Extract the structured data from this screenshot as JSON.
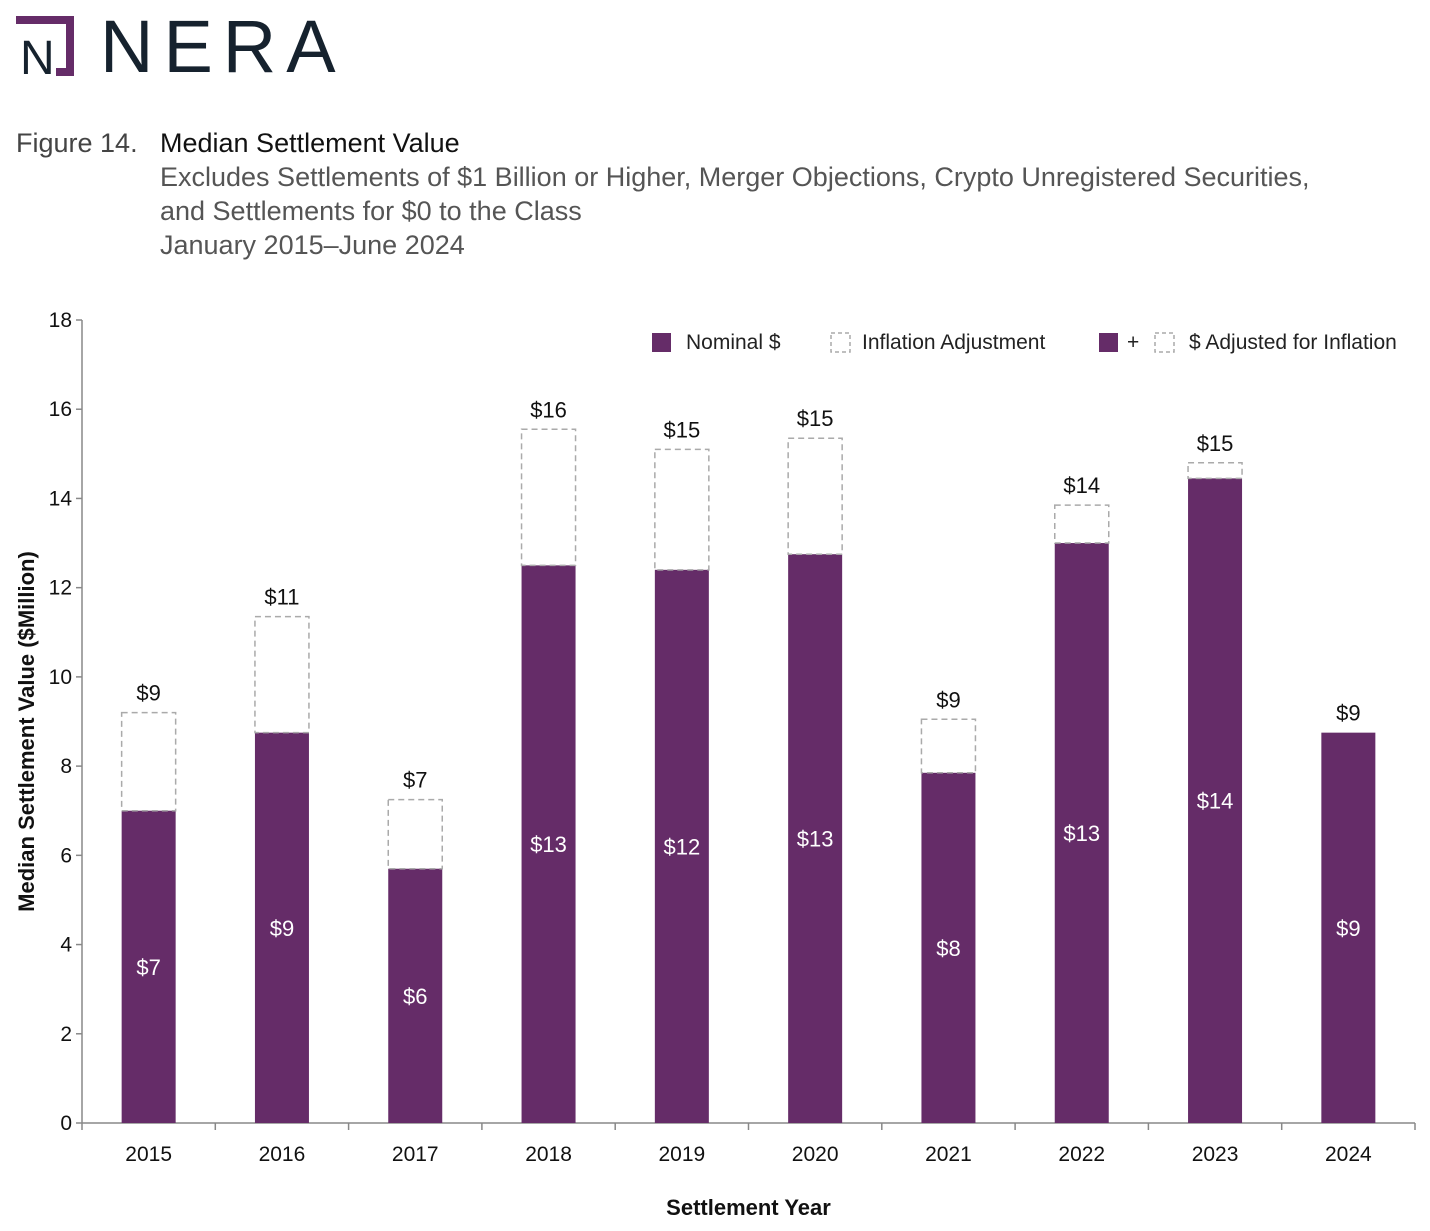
{
  "logo": {
    "text": "NERA",
    "mark_letter": "N"
  },
  "figure": {
    "label": "Figure 14.",
    "title": "Median Settlement Value",
    "subtitle_lines": [
      "Excludes Settlements of $1 Billion or Higher, Merger Objections, Crypto Unregistered Securities,",
      "and Settlements for $0 to the Class",
      "January 2015–June 2024"
    ]
  },
  "colors": {
    "nominal": "#652c68",
    "adjustment_stroke": "#aaaaaa",
    "axis": "#888888"
  },
  "chart_data": {
    "type": "bar",
    "stacked": true,
    "xlabel": "Settlement Year",
    "ylabel": "Median Settlement Value ($Million)",
    "ylim": [
      0,
      18
    ],
    "yticks": [
      0,
      2,
      4,
      6,
      8,
      10,
      12,
      14,
      16,
      18
    ],
    "categories": [
      "2015",
      "2016",
      "2017",
      "2018",
      "2019",
      "2020",
      "2021",
      "2022",
      "2023",
      "2024"
    ],
    "series": [
      {
        "name": "Nominal $",
        "values": [
          7.0,
          8.75,
          5.7,
          12.5,
          12.4,
          12.75,
          7.85,
          13.0,
          14.45,
          8.75
        ]
      },
      {
        "name": "Inflation Adjustment",
        "values": [
          2.2,
          2.6,
          1.55,
          3.05,
          2.7,
          2.6,
          1.2,
          0.85,
          0.35,
          0
        ]
      }
    ],
    "nominal_labels": [
      "$7",
      "$9",
      "$6",
      "$13",
      "$12",
      "$13",
      "$8",
      "$13",
      "$14",
      "$9"
    ],
    "adjusted_labels": [
      "$9",
      "$11",
      "$7",
      "$16",
      "$15",
      "$15",
      "$9",
      "$14",
      "$15",
      "$9"
    ],
    "legend": {
      "position": "top-right",
      "nominal": "Nominal $",
      "adjustment": "Inflation Adjustment",
      "plus": "+",
      "adjusted": "$ Adjusted for Inflation"
    }
  }
}
